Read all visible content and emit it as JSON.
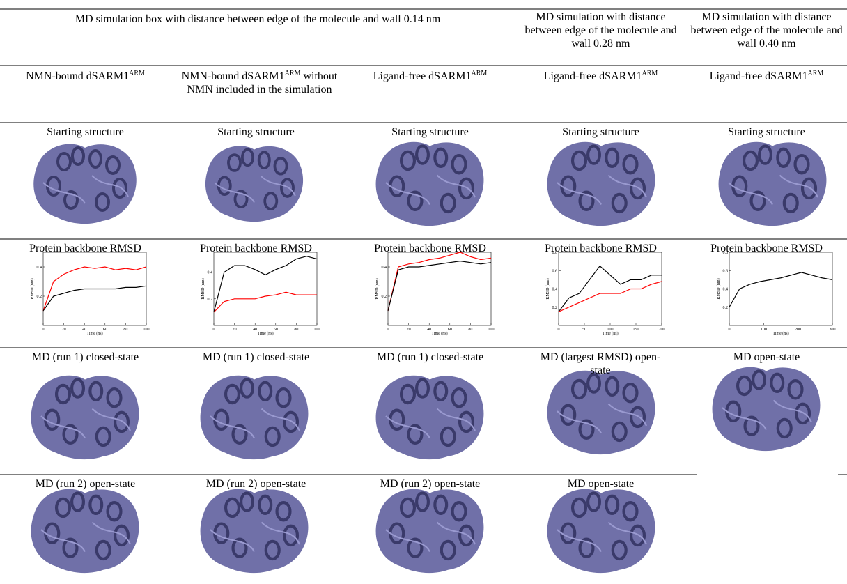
{
  "table": {
    "rows": [
      {
        "cells": [
          "MD simulation box with distance between edge of the molecule and wall 0.14 nm",
          "MD simulation with distance between edge of the molecule and wall 0.28 nm",
          "MD simulation with distance between edge of the molecule and wall 0.40 nm"
        ]
      },
      {
        "cells": [
          {
            "text": "NMN-bound dSARM1",
            "sup": "ARM"
          },
          {
            "text": "NMN-bound dSARM1",
            "sup": "ARM",
            "after": " without NMN  included in the simulation"
          },
          {
            "text": "Ligand-free dSARM1",
            "sup": "ARM"
          },
          {
            "text": "Ligand-free dSARM1",
            "sup": "ARM"
          },
          {
            "text": "Ligand-free dSARM1",
            "sup": "ARM"
          }
        ]
      },
      {
        "cells": [
          "Starting structure",
          "Starting structure",
          "Starting structure",
          "Starting structure",
          "Starting structure"
        ]
      },
      {
        "cells": [
          "Protein backbone RMSD",
          "Protein backbone RMSD",
          "Protein backbone RMSD",
          "Protein backbone RMSD",
          "Protein backbone RMSD"
        ]
      },
      {
        "cells": [
          "MD (run 1) closed-state",
          "MD (run 1) closed-state",
          "MD (run 1) closed-state",
          "MD (largest RMSD) open-state",
          "MD open-state"
        ]
      },
      {
        "cells": [
          "MD (run 2) open-state",
          "MD (run 2) open-state",
          "MD (run 2) open-state",
          "MD open-state"
        ]
      }
    ]
  },
  "rmsd_plots": [
    {
      "type": "line",
      "xlabel": "Time (ns)",
      "ylabel": "RMSD (nm)",
      "x": [
        0,
        10,
        20,
        30,
        40,
        50,
        60,
        70,
        80,
        90,
        100
      ],
      "xlim": [
        0,
        100
      ],
      "ylim": [
        0,
        0.5
      ],
      "xticks": [
        0,
        20,
        40,
        60,
        80,
        100
      ],
      "yticks": [
        0.2,
        0.4
      ],
      "series": [
        {
          "color": "#ff0000",
          "values": [
            0.1,
            0.3,
            0.35,
            0.38,
            0.4,
            0.39,
            0.4,
            0.38,
            0.39,
            0.38,
            0.4
          ]
        },
        {
          "color": "#000000",
          "values": [
            0.1,
            0.2,
            0.22,
            0.24,
            0.25,
            0.25,
            0.25,
            0.25,
            0.26,
            0.26,
            0.27
          ]
        }
      ]
    },
    {
      "type": "line",
      "xlabel": "Time (ns)",
      "ylabel": "RMSD (nm)",
      "x": [
        0,
        10,
        20,
        30,
        40,
        50,
        60,
        70,
        80,
        90,
        100
      ],
      "xlim": [
        0,
        100
      ],
      "ylim": [
        0,
        0.55
      ],
      "xticks": [
        0,
        20,
        40,
        60,
        80,
        100
      ],
      "yticks": [
        0.2,
        0.4
      ],
      "series": [
        {
          "color": "#000000",
          "values": [
            0.1,
            0.4,
            0.45,
            0.45,
            0.42,
            0.38,
            0.42,
            0.45,
            0.5,
            0.52,
            0.5
          ]
        },
        {
          "color": "#ff0000",
          "values": [
            0.1,
            0.18,
            0.2,
            0.2,
            0.2,
            0.22,
            0.23,
            0.25,
            0.23,
            0.23,
            0.23
          ]
        }
      ]
    },
    {
      "type": "line",
      "xlabel": "Time (ns)",
      "ylabel": "RMSD (nm)",
      "x": [
        0,
        10,
        20,
        30,
        40,
        50,
        60,
        70,
        80,
        90,
        100
      ],
      "xlim": [
        0,
        100
      ],
      "ylim": [
        0,
        0.5
      ],
      "xticks": [
        0,
        20,
        40,
        60,
        80,
        100
      ],
      "yticks": [
        0.2,
        0.4
      ],
      "series": [
        {
          "color": "#ff0000",
          "values": [
            0.1,
            0.4,
            0.42,
            0.43,
            0.45,
            0.46,
            0.48,
            0.5,
            0.47,
            0.45,
            0.46
          ]
        },
        {
          "color": "#000000",
          "values": [
            0.1,
            0.38,
            0.4,
            0.4,
            0.41,
            0.42,
            0.43,
            0.44,
            0.43,
            0.42,
            0.43
          ]
        }
      ]
    },
    {
      "type": "line",
      "xlabel": "Time (ns)",
      "ylabel": "RMSD (nm)",
      "x": [
        0,
        20,
        40,
        60,
        80,
        100,
        120,
        140,
        160,
        180,
        200
      ],
      "xlim": [
        0,
        200
      ],
      "ylim": [
        0,
        0.8
      ],
      "xticks": [
        0,
        50,
        100,
        150,
        200
      ],
      "yticks": [
        0.2,
        0.4,
        0.6,
        0.8
      ],
      "series": [
        {
          "color": "#000000",
          "values": [
            0.15,
            0.3,
            0.35,
            0.5,
            0.65,
            0.55,
            0.45,
            0.5,
            0.5,
            0.55,
            0.55
          ]
        },
        {
          "color": "#ff0000",
          "values": [
            0.15,
            0.2,
            0.25,
            0.3,
            0.35,
            0.35,
            0.35,
            0.4,
            0.4,
            0.45,
            0.48
          ]
        }
      ]
    },
    {
      "type": "line",
      "xlabel": "Time (ns)",
      "ylabel": "RMSD (nm)",
      "x": [
        0,
        30,
        60,
        90,
        120,
        150,
        180,
        210,
        240,
        270,
        300
      ],
      "xlim": [
        0,
        300
      ],
      "ylim": [
        0,
        0.8
      ],
      "xticks": [
        0,
        100,
        200,
        300
      ],
      "yticks": [
        0.2,
        0.4,
        0.6,
        0.8
      ],
      "series": [
        {
          "color": "#000000",
          "values": [
            0.2,
            0.4,
            0.45,
            0.48,
            0.5,
            0.52,
            0.55,
            0.58,
            0.55,
            0.52,
            0.5
          ]
        }
      ]
    }
  ]
}
